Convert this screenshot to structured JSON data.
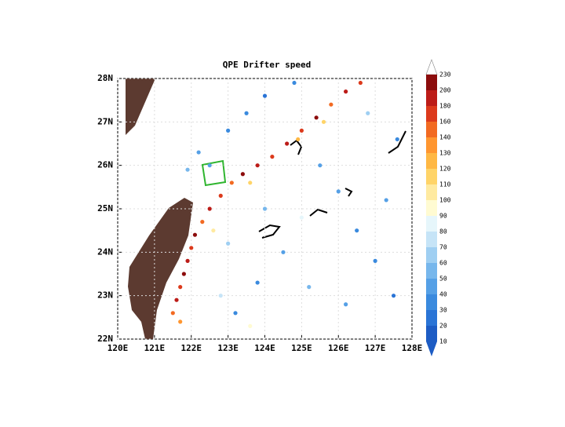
{
  "chart_data": {
    "type": "scatter",
    "title": "QPE Drifter speed",
    "xlim": [
      120,
      128
    ],
    "ylim": [
      22,
      28
    ],
    "xticks": [
      {
        "value": 120,
        "label": "120E"
      },
      {
        "value": 121,
        "label": "121E"
      },
      {
        "value": 122,
        "label": "122E"
      },
      {
        "value": 123,
        "label": "123E"
      },
      {
        "value": 124,
        "label": "124E"
      },
      {
        "value": 125,
        "label": "125E"
      },
      {
        "value": 126,
        "label": "126E"
      },
      {
        "value": 127,
        "label": "127E"
      },
      {
        "value": 128,
        "label": "128E"
      }
    ],
    "yticks": [
      {
        "value": 22,
        "label": "22N"
      },
      {
        "value": 23,
        "label": "23N"
      },
      {
        "value": 24,
        "label": "24N"
      },
      {
        "value": 25,
        "label": "25N"
      },
      {
        "value": 26,
        "label": "26N"
      },
      {
        "value": 27,
        "label": "27N"
      },
      {
        "value": 28,
        "label": "28N"
      }
    ],
    "colorbar": {
      "levels": [
        10,
        20,
        30,
        40,
        50,
        60,
        70,
        80,
        90,
        100,
        110,
        120,
        130,
        140,
        160,
        180,
        200,
        230
      ],
      "colors": [
        "#1d5cc4",
        "#2a74d6",
        "#3a8ade",
        "#55a0e6",
        "#77b7ec",
        "#9fcff2",
        "#c6e4f7",
        "#e6f6fb",
        "#fffbd2",
        "#ffeaa0",
        "#ffd468",
        "#ffb844",
        "#ff9630",
        "#f26a22",
        "#dc3a1c",
        "#bc1c18",
        "#8c0c0c"
      ]
    },
    "x": [
      121.5,
      121.6,
      121.7,
      121.8,
      121.9,
      122.0,
      122.1,
      122.3,
      122.5,
      122.8,
      123.1,
      123.4,
      123.8,
      124.2,
      124.6,
      125.0,
      125.4,
      125.8,
      126.2,
      126.6,
      124.9,
      125.6,
      123.6,
      122.6,
      121.7,
      122.5,
      123.0,
      123.5,
      124.0,
      124.8,
      125.5,
      126.0,
      126.5,
      127.0,
      127.5,
      124.5,
      123.8,
      123.2,
      125.2,
      126.2,
      124.0,
      123.0,
      122.8,
      127.3,
      127.6,
      121.9,
      122.2,
      126.8,
      125.0,
      123.6
    ],
    "y": [
      22.6,
      22.9,
      23.2,
      23.5,
      23.8,
      24.1,
      24.4,
      24.7,
      25.0,
      25.3,
      25.6,
      25.8,
      26.0,
      26.2,
      26.5,
      26.8,
      27.1,
      27.4,
      27.7,
      27.9,
      26.6,
      27.0,
      25.6,
      24.5,
      22.4,
      26.0,
      26.8,
      27.2,
      27.6,
      27.9,
      26.0,
      25.4,
      24.5,
      23.8,
      23.0,
      24.0,
      23.3,
      22.6,
      23.2,
      22.8,
      25.0,
      24.2,
      23.0,
      25.2,
      26.6,
      25.9,
      26.3,
      27.2,
      24.8,
      22.3
    ],
    "values": [
      150,
      190,
      170,
      200,
      180,
      160,
      210,
      140,
      190,
      170,
      150,
      200,
      180,
      160,
      190,
      170,
      210,
      150,
      190,
      170,
      120,
      110,
      115,
      100,
      130,
      40,
      30,
      35,
      25,
      30,
      45,
      40,
      35,
      30,
      25,
      40,
      35,
      30,
      50,
      45,
      55,
      60,
      70,
      40,
      35,
      50,
      45,
      60,
      80,
      90
    ]
  }
}
